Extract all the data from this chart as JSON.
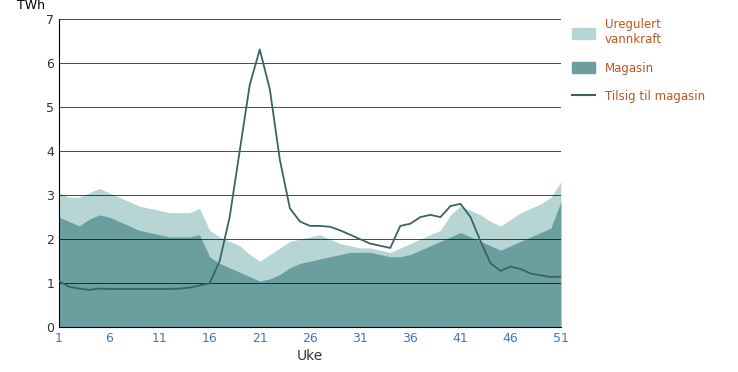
{
  "weeks": [
    1,
    2,
    3,
    4,
    5,
    6,
    7,
    8,
    9,
    10,
    11,
    12,
    13,
    14,
    15,
    16,
    17,
    18,
    19,
    20,
    21,
    22,
    23,
    24,
    25,
    26,
    27,
    28,
    29,
    30,
    31,
    32,
    33,
    34,
    35,
    36,
    37,
    38,
    39,
    40,
    41,
    42,
    43,
    44,
    45,
    46,
    47,
    48,
    49,
    50,
    51
  ],
  "magasin": [
    2.5,
    2.4,
    2.3,
    2.45,
    2.55,
    2.5,
    2.4,
    2.3,
    2.2,
    2.15,
    2.1,
    2.05,
    2.05,
    2.05,
    2.1,
    1.6,
    1.45,
    1.35,
    1.25,
    1.15,
    1.05,
    1.1,
    1.2,
    1.35,
    1.45,
    1.5,
    1.55,
    1.6,
    1.65,
    1.7,
    1.7,
    1.7,
    1.65,
    1.6,
    1.6,
    1.65,
    1.75,
    1.85,
    1.95,
    2.05,
    2.15,
    2.05,
    1.95,
    1.85,
    1.75,
    1.85,
    1.95,
    2.05,
    2.15,
    2.25,
    2.85
  ],
  "uregulert": [
    3.05,
    2.95,
    2.95,
    3.05,
    3.15,
    3.05,
    2.95,
    2.85,
    2.75,
    2.7,
    2.65,
    2.6,
    2.6,
    2.6,
    2.7,
    2.2,
    2.05,
    1.95,
    1.85,
    1.65,
    1.5,
    1.65,
    1.8,
    1.95,
    2.0,
    2.05,
    2.1,
    2.0,
    1.9,
    1.85,
    1.8,
    1.8,
    1.75,
    1.7,
    1.8,
    1.9,
    2.0,
    2.1,
    2.2,
    2.55,
    2.75,
    2.65,
    2.55,
    2.4,
    2.3,
    2.45,
    2.6,
    2.7,
    2.8,
    2.95,
    3.3
  ],
  "tilsig": [
    1.05,
    0.92,
    0.88,
    0.85,
    0.88,
    0.87,
    0.87,
    0.87,
    0.87,
    0.87,
    0.87,
    0.87,
    0.88,
    0.9,
    0.95,
    1.0,
    1.5,
    2.5,
    4.0,
    5.5,
    6.3,
    5.4,
    3.8,
    2.7,
    2.4,
    2.3,
    2.3,
    2.28,
    2.2,
    2.1,
    2.0,
    1.9,
    1.85,
    1.8,
    2.3,
    2.35,
    2.5,
    2.55,
    2.5,
    2.75,
    2.8,
    2.5,
    1.95,
    1.45,
    1.28,
    1.38,
    1.32,
    1.22,
    1.18,
    1.14,
    1.15
  ],
  "color_magasin": "#6b9e9e",
  "color_uregulert": "#b8d5d5",
  "color_tilsig": "#3a6464",
  "text_color_dark": "#333333",
  "text_color_blue": "#4472c4",
  "text_color_legend": "#c0541a",
  "ylabel": "TWh",
  "xlabel": "Uke",
  "ylim": [
    0,
    7
  ],
  "xlim": [
    1,
    51
  ],
  "xticks": [
    1,
    6,
    11,
    16,
    21,
    26,
    31,
    36,
    41,
    46,
    51
  ],
  "yticks": [
    0,
    1,
    2,
    3,
    4,
    5,
    6,
    7
  ],
  "legend_labels": [
    "Uregulert\nvannkraft",
    "Magasin",
    "Tilsig til magasin"
  ]
}
